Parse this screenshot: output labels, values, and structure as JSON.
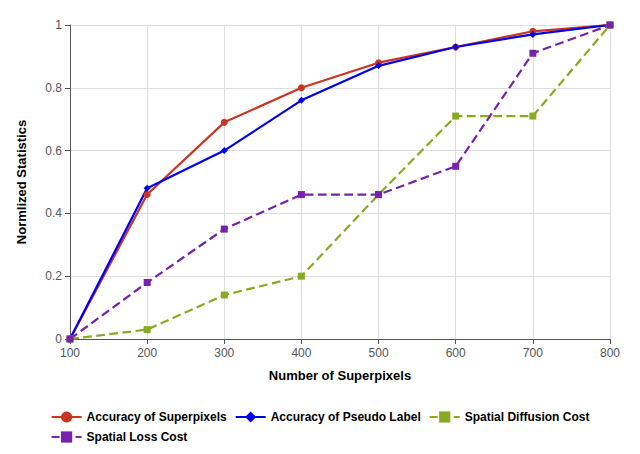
{
  "chart_data": {
    "type": "line",
    "x_label": "Number of Superpixels",
    "y_label": "Normlized Statistics",
    "x": [
      100,
      200,
      300,
      400,
      500,
      600,
      700,
      800
    ],
    "series": [
      {
        "name": "Accuracy of Superpixels",
        "color": "#CC3322",
        "marker": "circle",
        "line_style": "solid",
        "values": [
          0.0,
          0.46,
          0.69,
          0.8,
          0.88,
          0.93,
          0.98,
          1.0
        ]
      },
      {
        "name": "Accuracy of Pseudo Label",
        "color": "#0000EE",
        "marker": "diamond",
        "line_style": "solid",
        "values": [
          0.0,
          0.48,
          0.6,
          0.76,
          0.87,
          0.93,
          0.97,
          1.0
        ]
      },
      {
        "name": "Spatial Diffusion Cost",
        "color": "#88AA22",
        "marker": "square",
        "line_style": "dashed",
        "values": [
          0.0,
          0.03,
          0.14,
          0.2,
          0.46,
          0.71,
          0.71,
          1.0
        ]
      },
      {
        "name": "Spatial Loss Cost",
        "color": "#7722AA",
        "marker": "square",
        "line_style": "dashed",
        "values": [
          0.0,
          0.18,
          0.35,
          0.46,
          0.46,
          0.55,
          0.91,
          1.0
        ]
      }
    ],
    "xlim": [
      100,
      800
    ],
    "ylim": [
      0,
      1.0
    ],
    "xticks": [
      100,
      200,
      300,
      400,
      500,
      600,
      700,
      800
    ],
    "yticks": [
      0,
      0.2,
      0.4,
      0.6,
      0.8,
      1
    ],
    "grid": true,
    "legend": "bottom"
  }
}
